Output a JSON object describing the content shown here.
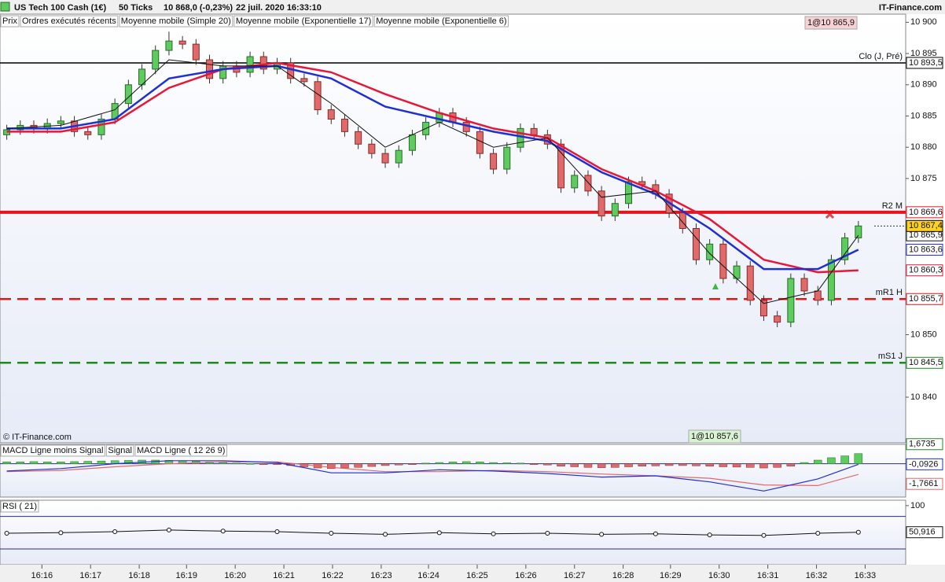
{
  "header": {
    "instrument": "US Tech 100 Cash (1€)",
    "period": "50 Ticks",
    "price": "10 868,0 (-0,23%)",
    "datetime": "22 juil. 2020 16:33:10",
    "brand": "IT-Finance.com"
  },
  "chart_data": [
    {
      "type": "candlestick",
      "name": "Prix",
      "orders_name": "Ordres exécutés récents",
      "orders_color": "#e06a6a",
      "copyright": "© IT-Finance.com",
      "up_color": "#5ecb5e",
      "down_color": "#e06a6a",
      "open": [
        10882.0,
        10882.8,
        10883.5,
        10883.0,
        10883.8,
        10884.2,
        10882.5,
        10882.0,
        10884.5,
        10887.0,
        10890.0,
        10892.5,
        10895.5,
        10897.0,
        10896.5,
        10894.0,
        10891.0,
        10893.0,
        10892.0,
        10894.5,
        10892.5,
        10893.5,
        10891.0,
        10890.5,
        10886.0,
        10884.5,
        10882.5,
        10880.5,
        10879.0,
        10877.5,
        10879.5,
        10882.0,
        10884.0,
        10885.5,
        10884.0,
        10882.5,
        10879.0,
        10876.5,
        10880.0,
        10883.0,
        10882.0,
        10880.5,
        10873.5,
        10875.5,
        10873.0,
        10869.0,
        10871.0,
        10874.5,
        10874.0,
        10872.5,
        10869.5,
        10867.0,
        10862.0,
        10864.5,
        10859.0,
        10861.0,
        10855.5,
        10853.0,
        10852.0,
        10859.0,
        10857.0,
        10855.5,
        10862.0,
        10865.5
      ],
      "high": [
        10883.6,
        10884.3,
        10884.3,
        10884.6,
        10885.0,
        10885.0,
        10883.3,
        10885.3,
        10887.8,
        10890.8,
        10893.3,
        10896.3,
        10898.5,
        10897.8,
        10897.3,
        10894.8,
        10893.8,
        10893.8,
        10895.3,
        10895.3,
        10894.3,
        10894.3,
        10891.8,
        10891.3,
        10886.8,
        10885.3,
        10883.3,
        10881.3,
        10879.8,
        10880.3,
        10882.8,
        10884.8,
        10886.3,
        10886.3,
        10884.8,
        10883.3,
        10879.8,
        10880.8,
        10883.8,
        10883.8,
        10882.8,
        10881.3,
        10876.3,
        10876.3,
        10873.8,
        10871.8,
        10875.3,
        10875.3,
        10874.8,
        10873.3,
        10870.3,
        10867.8,
        10865.3,
        10865.3,
        10861.8,
        10861.8,
        10856.3,
        10853.8,
        10859.8,
        10859.8,
        10857.8,
        10862.8,
        10866.3,
        10868.2
      ],
      "low": [
        10881.2,
        10882.0,
        10882.2,
        10882.2,
        10883.0,
        10881.7,
        10881.2,
        10881.2,
        10883.7,
        10886.2,
        10889.2,
        10891.7,
        10894.7,
        10895.7,
        10893.2,
        10890.2,
        10890.2,
        10891.2,
        10891.2,
        10891.7,
        10891.7,
        10890.2,
        10889.7,
        10885.2,
        10883.7,
        10881.7,
        10879.7,
        10878.2,
        10876.7,
        10876.7,
        10878.7,
        10881.2,
        10883.2,
        10883.2,
        10881.7,
        10878.2,
        10875.7,
        10875.7,
        10879.2,
        10881.2,
        10879.7,
        10872.7,
        10872.7,
        10872.2,
        10868.2,
        10868.2,
        10870.2,
        10873.2,
        10871.7,
        10868.7,
        10866.2,
        10861.2,
        10861.2,
        10858.2,
        10858.2,
        10854.7,
        10852.2,
        10851.2,
        10851.2,
        10856.2,
        10854.7,
        10854.7,
        10861.2,
        10864.7
      ],
      "close": [
        10882.8,
        10883.5,
        10883.0,
        10883.8,
        10884.2,
        10882.5,
        10882.0,
        10884.5,
        10887.0,
        10890.0,
        10892.5,
        10895.5,
        10897.0,
        10896.5,
        10894.0,
        10891.0,
        10893.0,
        10892.0,
        10894.5,
        10892.5,
        10893.5,
        10891.0,
        10890.5,
        10886.0,
        10884.5,
        10882.5,
        10880.5,
        10879.0,
        10877.5,
        10879.5,
        10882.0,
        10884.0,
        10885.5,
        10884.0,
        10882.5,
        10879.0,
        10876.5,
        10880.0,
        10883.0,
        10882.0,
        10880.5,
        10873.5,
        10875.5,
        10873.0,
        10869.0,
        10871.0,
        10874.5,
        10874.0,
        10872.5,
        10869.5,
        10867.0,
        10862.0,
        10864.5,
        10859.0,
        10861.0,
        10855.5,
        10853.0,
        10852.0,
        10859.0,
        10857.0,
        10855.5,
        10862.0,
        10865.5,
        10867.4
      ],
      "last_price": {
        "value": 10867.4,
        "label": "10 867,4"
      },
      "series": [
        {
          "name": "Moyenne mobile (Simple 20)",
          "color": "#e8173a",
          "x": [
            0,
            4,
            8,
            12,
            16,
            20,
            24,
            28,
            32,
            36,
            40,
            44,
            48,
            52,
            56,
            60,
            63
          ],
          "values": [
            10882.5,
            10882.5,
            10884,
            10889.5,
            10892.5,
            10893.5,
            10892,
            10888.5,
            10885.5,
            10883,
            10881.5,
            10876.5,
            10873,
            10868.5,
            10862,
            10860,
            10860.3
          ],
          "last_label": "10 860,3"
        },
        {
          "name": "Moyenne mobile (Exponentielle 17)",
          "color": "#1f2fd6",
          "x": [
            0,
            4,
            8,
            12,
            16,
            20,
            24,
            28,
            32,
            36,
            40,
            44,
            48,
            52,
            56,
            60,
            63
          ],
          "values": [
            10883,
            10883,
            10884.5,
            10891,
            10892.5,
            10893,
            10891,
            10886.5,
            10884.5,
            10882.5,
            10881,
            10876,
            10872.5,
            10867,
            10860.5,
            10860.5,
            10863.6
          ],
          "last_label": "10 863,6"
        },
        {
          "name": "Moyenne mobile (Exponentielle 6)",
          "color": "#111111",
          "x": [
            0,
            4,
            8,
            12,
            16,
            20,
            24,
            28,
            32,
            36,
            40,
            44,
            48,
            52,
            56,
            60,
            63
          ],
          "values": [
            10883,
            10883.5,
            10886,
            10894,
            10893,
            10893,
            10887,
            10880,
            10884,
            10880,
            10881.5,
            10872,
            10873,
            10863,
            10855,
            10857,
            10865.9
          ],
          "last_label": "10 865,9"
        }
      ],
      "levels": [
        {
          "name": "Clo (J, Pré)",
          "value": 10893.5,
          "label": "10 893,5",
          "color": "#000000",
          "style": "thin"
        },
        {
          "name": "R2 M",
          "value": 10869.6,
          "label": "10 869,6",
          "color": "#e8141a",
          "style": "thick"
        },
        {
          "name": "mR1 H",
          "value": 10855.7,
          "label": "10 855,7",
          "color": "#e8141a",
          "style": "dashed"
        },
        {
          "name": "mS1 J",
          "value": 10845.5,
          "label": "10 845,5",
          "color": "#1e8a1e",
          "style": "dashed"
        }
      ],
      "annotations": [
        "1@10 865,9",
        "1@10 857,6"
      ],
      "xlim": [
        -0.5,
        66.5
      ],
      "ylim": [
        10832.7,
        10901.3
      ],
      "yticks": [
        {
          "value": 10900,
          "label": "10 900"
        },
        {
          "value": 10895,
          "label": "10 895"
        },
        {
          "value": 10890,
          "label": "10 890"
        },
        {
          "value": 10885,
          "label": "10 885"
        },
        {
          "value": 10880,
          "label": "10 880"
        },
        {
          "value": 10875,
          "label": "10 875"
        },
        {
          "value": 10850,
          "label": "10 850"
        },
        {
          "value": 10840,
          "label": "10 840"
        }
      ]
    },
    {
      "type": "macd",
      "xlim": [
        -0.5,
        66.5
      ],
      "ylim": [
        -5.5,
        3.2
      ],
      "histogram": {
        "name": "MACD Ligne moins Signal",
        "up_color": "#5ecb5e",
        "down_color": "#e06a6a",
        "label_color": "#1e8a1e",
        "values": [
          0.3,
          0.3,
          0.35,
          0.3,
          0.3,
          0.35,
          0.4,
          0.45,
          0.5,
          0.55,
          0.6,
          0.6,
          0.55,
          0.5,
          0.4,
          0.3,
          0.2,
          0.1,
          0.05,
          -0.05,
          -0.1,
          -0.3,
          -0.5,
          -0.7,
          -0.8,
          -0.7,
          -0.6,
          -0.45,
          -0.3,
          -0.2,
          -0.1,
          0.1,
          0.2,
          0.3,
          0.35,
          0.3,
          0.2,
          0.15,
          0.1,
          -0.1,
          -0.2,
          -0.4,
          -0.5,
          -0.6,
          -0.65,
          -0.6,
          -0.5,
          -0.4,
          -0.35,
          -0.3,
          -0.3,
          -0.35,
          -0.4,
          -0.5,
          -0.55,
          -0.6,
          -0.7,
          -0.6,
          -0.4,
          0.2,
          0.6,
          1.0,
          1.3,
          1.6735
        ],
        "last_label": "1,6735"
      },
      "series": [
        {
          "name": "Signal",
          "color": "#e06a6a",
          "x": [
            0,
            4,
            8,
            12,
            16,
            20,
            24,
            28,
            32,
            36,
            40,
            44,
            48,
            52,
            56,
            60,
            63
          ],
          "values": [
            -1.3,
            -1.1,
            -0.5,
            0.0,
            0.3,
            0.3,
            -0.6,
            -1.3,
            -1.3,
            -1.1,
            -1.3,
            -1.7,
            -2.0,
            -2.4,
            -3.5,
            -3.6,
            -1.7661
          ],
          "last_label": "-1,7661"
        },
        {
          "name": "MACD Ligne ( 12 26 9)",
          "color": "#1f2fd6",
          "x": [
            0,
            4,
            8,
            12,
            16,
            20,
            24,
            28,
            32,
            36,
            40,
            44,
            48,
            52,
            56,
            60,
            63
          ],
          "values": [
            -1.2,
            -0.8,
            0.0,
            0.5,
            0.5,
            0.2,
            -1.5,
            -1.5,
            -1.0,
            -1.2,
            -1.6,
            -2.2,
            -2.0,
            -3.0,
            -4.5,
            -2.5,
            -0.0926
          ],
          "last_label": "-0,0926"
        }
      ]
    },
    {
      "type": "rsi",
      "xlim": [
        -0.5,
        66.5
      ],
      "ylim": [
        -9,
        110
      ],
      "yticks": [
        100
      ],
      "bands": [
        20,
        80
      ],
      "series": [
        {
          "name": "RSI ( 21)",
          "color": "#111111",
          "x": [
            0,
            4,
            8,
            12,
            16,
            20,
            24,
            28,
            32,
            36,
            40,
            44,
            48,
            52,
            56,
            60,
            63
          ],
          "values": [
            49,
            50,
            52,
            55,
            53,
            52,
            49,
            47,
            50,
            48,
            49,
            47,
            48,
            46,
            45,
            49,
            50.916
          ],
          "last_label": "50,916"
        }
      ],
      "xticks": [
        {
          "value": 2.6,
          "label": "16:16"
        },
        {
          "value": 6.2,
          "label": "16:17"
        },
        {
          "value": 9.8,
          "label": "16:18"
        },
        {
          "value": 13.3,
          "label": "16:19"
        },
        {
          "value": 16.9,
          "label": "16:20"
        },
        {
          "value": 20.5,
          "label": "16:21"
        },
        {
          "value": 24.1,
          "label": "16:22"
        },
        {
          "value": 27.7,
          "label": "16:23"
        },
        {
          "value": 31.2,
          "label": "16:24"
        },
        {
          "value": 34.8,
          "label": "16:25"
        },
        {
          "value": 38.4,
          "label": "16:26"
        },
        {
          "value": 42.0,
          "label": "16:27"
        },
        {
          "value": 45.6,
          "label": "16:28"
        },
        {
          "value": 49.1,
          "label": "16:29"
        },
        {
          "value": 52.7,
          "label": "16:30"
        },
        {
          "value": 56.3,
          "label": "16:31"
        },
        {
          "value": 59.9,
          "label": "16:32"
        },
        {
          "value": 63.5,
          "label": "16:33"
        }
      ]
    }
  ]
}
